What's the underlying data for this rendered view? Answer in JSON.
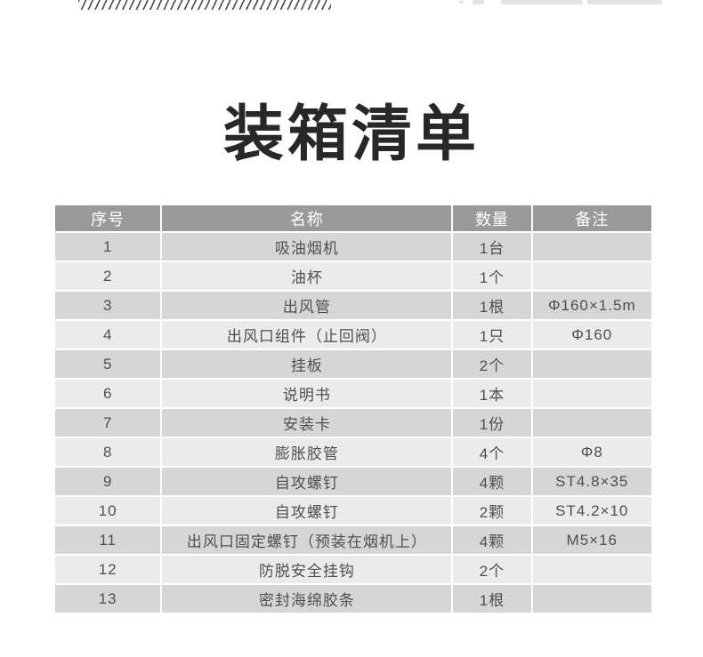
{
  "title": "装箱清单",
  "decor": {
    "hatch_band": "diagonal-hatch-stripes",
    "top_right_fragments": 4
  },
  "colors": {
    "title_text": "#282828",
    "header_bg": "#9a9a9a",
    "header_text": "#ffffff",
    "row_odd_bg": "#d6d6d6",
    "row_even_bg": "#ebebeb",
    "cell_text": "#4f4f4f",
    "hatch_line": "#4a4a4a"
  },
  "table": {
    "headers": {
      "no": "序号",
      "name": "名称",
      "qty": "数量",
      "note": "备注"
    },
    "rows": [
      {
        "no": "1",
        "name": "吸油烟机",
        "qty": "1台",
        "note": ""
      },
      {
        "no": "2",
        "name": "油杯",
        "qty": "1个",
        "note": ""
      },
      {
        "no": "3",
        "name": "出风管",
        "qty": "1根",
        "note": "Φ160×1.5m"
      },
      {
        "no": "4",
        "name": "出风口组件（止回阀）",
        "qty": "1只",
        "note": "Φ160"
      },
      {
        "no": "5",
        "name": "挂板",
        "qty": "2个",
        "note": ""
      },
      {
        "no": "6",
        "name": "说明书",
        "qty": "1本",
        "note": ""
      },
      {
        "no": "7",
        "name": "安装卡",
        "qty": "1份",
        "note": ""
      },
      {
        "no": "8",
        "name": "膨胀胶管",
        "qty": "4个",
        "note": "Φ8"
      },
      {
        "no": "9",
        "name": "自攻螺钉",
        "qty": "4颗",
        "note": "ST4.8×35"
      },
      {
        "no": "10",
        "name": "自攻螺钉",
        "qty": "2颗",
        "note": "ST4.2×10"
      },
      {
        "no": "11",
        "name": "出风口固定螺钉（预装在烟机上）",
        "qty": "4颗",
        "note": "M5×16"
      },
      {
        "no": "12",
        "name": "防脱安全挂钩",
        "qty": "2个",
        "note": ""
      },
      {
        "no": "13",
        "name": "密封海绵胶条",
        "qty": "1根",
        "note": ""
      }
    ]
  }
}
